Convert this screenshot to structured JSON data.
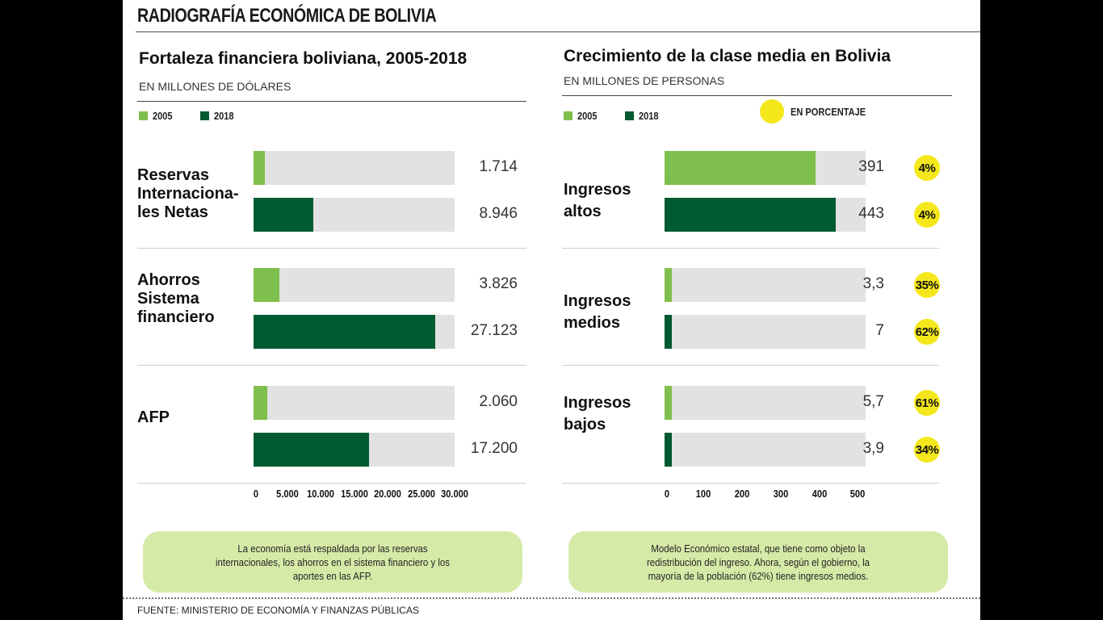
{
  "header": {
    "title": "RADIOGRAFÍA ECONÓMICA DE BOLIVIA"
  },
  "colors": {
    "light_green": "#7fbf4d",
    "dark_green": "#005a32",
    "track": "#e2e2e2",
    "highlight": "#f4e81c",
    "note_bg": "#d6eaa8"
  },
  "chart_data": [
    {
      "type": "bar",
      "orientation": "horizontal",
      "title": "Fortaleza financiera boliviana, 2005-2018",
      "subtitle": "EN MILLONES DE DÓLARES",
      "categories": [
        "Reservas\nInternaciona-\nles Netas",
        "Ahorros\nSistema\nfinanciero",
        "AFP"
      ],
      "series": [
        {
          "name": "2005",
          "values": [
            1714,
            3826,
            2060
          ],
          "labels": [
            "1.714",
            "3.826",
            "2.060"
          ]
        },
        {
          "name": "2018",
          "values": [
            8946,
            27123,
            17200
          ],
          "labels": [
            "8.946",
            "27.123",
            "17.200"
          ]
        }
      ],
      "xlim": [
        0,
        30000
      ],
      "xticks": [
        "0",
        "5.000",
        "10.000",
        "15.000",
        "20.000",
        "25.000",
        "30.000"
      ],
      "legend": "top-left",
      "note": "La economía está respaldada por las reservas internacionales, los ahorros en el sistema financiero y los aportes en las AFP."
    },
    {
      "type": "bar",
      "orientation": "horizontal",
      "title": "Crecimiento de la clase media en Bolivia",
      "subtitle": "EN MILLONES DE PERSONAS",
      "categories": [
        "Ingresos\naltos",
        "Ingresos\nmedios",
        "Ingresos\nbajos"
      ],
      "series": [
        {
          "name": "2005",
          "values": [
            391,
            3.3,
            5.7
          ],
          "labels": [
            "391",
            "3,3",
            "5,7"
          ],
          "percent_labels": [
            "4%",
            "35%",
            "61%"
          ]
        },
        {
          "name": "2018",
          "values": [
            443,
            7,
            3.9
          ],
          "labels": [
            "443",
            "7",
            "3,9"
          ],
          "percent_labels": [
            "4%",
            "62%",
            "34%"
          ]
        }
      ],
      "percent_legend": "EN PORCENTAJE",
      "xlim": [
        0,
        520
      ],
      "xticks": [
        "0",
        "100",
        "200",
        "300",
        "400",
        "500"
      ],
      "legend": "top-left",
      "note": "Modelo Económico estatal, que tiene como objeto la redistribución del ingreso. Ahora, según el gobierno, la mayoría de la población (62%) tiene ingresos medios."
    }
  ],
  "footer": {
    "source": "FUENTE: MINISTERIO DE ECONOMÍA Y FINANZAS PÚBLICAS"
  }
}
